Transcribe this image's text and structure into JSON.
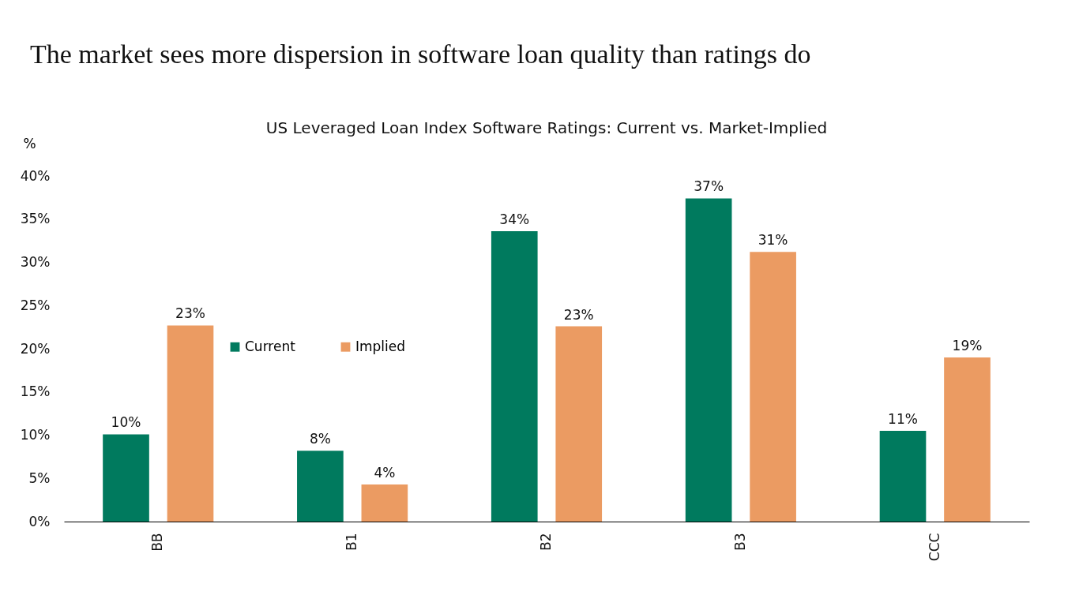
{
  "chart_data": {
    "type": "bar",
    "title": "The market sees more dispersion in software loan quality than ratings do",
    "subtitle": "US Leveraged Loan Index Software Ratings: Current vs. Market-Implied",
    "ylabel": "%",
    "categories": [
      "BB",
      "B1",
      "B2",
      "B3",
      "CCC"
    ],
    "series": [
      {
        "name": "Current",
        "color": "#007a5e",
        "values": [
          10.1,
          8.2,
          33.6,
          37.4,
          10.5
        ],
        "value_labels": [
          "10%",
          "8%",
          "34%",
          "37%",
          "11%"
        ]
      },
      {
        "name": "Implied",
        "color": "#eb9b62",
        "values": [
          22.7,
          4.3,
          22.6,
          31.2,
          19.0
        ],
        "value_labels": [
          "23%",
          "4%",
          "23%",
          "31%",
          "19%"
        ]
      }
    ],
    "ylim": [
      0,
      40
    ],
    "yticks": [
      {
        "value": 0,
        "label": "0%"
      },
      {
        "value": 5,
        "label": "5%"
      },
      {
        "value": 10,
        "label": "10%"
      },
      {
        "value": 15,
        "label": "15%"
      },
      {
        "value": 20,
        "label": "20%"
      },
      {
        "value": 25,
        "label": "25%"
      },
      {
        "value": 30,
        "label": "30%"
      },
      {
        "value": 35,
        "label": "35%"
      },
      {
        "value": 40,
        "label": "40%"
      }
    ],
    "legend": "top left",
    "grid": false
  }
}
